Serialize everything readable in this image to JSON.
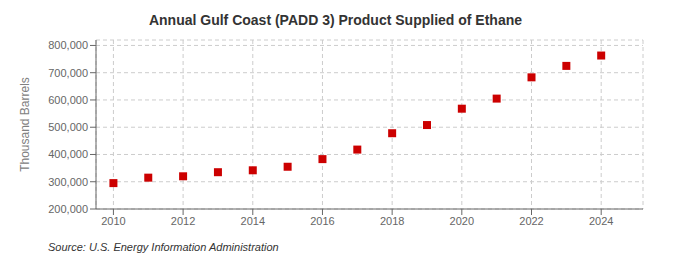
{
  "chart_data": {
    "type": "scatter",
    "title": "Annual Gulf Coast (PADD 3) Product Supplied of Ethane",
    "ylabel": "Thousand Barrels",
    "source": "Source: U.S. Energy Information Administration",
    "x": [
      2010,
      2011,
      2012,
      2013,
      2014,
      2015,
      2016,
      2017,
      2018,
      2019,
      2020,
      2021,
      2022,
      2023,
      2024
    ],
    "values": [
      295000,
      315000,
      320000,
      335000,
      342000,
      355000,
      383000,
      418000,
      478000,
      508000,
      568000,
      605000,
      683000,
      725000,
      763000
    ],
    "color": "#cc0000",
    "marker": "square",
    "xlim": [
      2009.5,
      2025.2
    ],
    "xticks": [
      2010,
      2012,
      2014,
      2016,
      2018,
      2020,
      2022,
      2024
    ],
    "ylim": [
      200000,
      820000
    ],
    "yticks": [
      {
        "value": 200000,
        "label": "200,000"
      },
      {
        "value": 300000,
        "label": "300,000"
      },
      {
        "value": 400000,
        "label": "400,000"
      },
      {
        "value": 500000,
        "label": "500,000"
      },
      {
        "value": 600000,
        "label": "600,000"
      },
      {
        "value": 700000,
        "label": "700,000"
      },
      {
        "value": 800000,
        "label": "800,000"
      }
    ],
    "grid": true
  }
}
